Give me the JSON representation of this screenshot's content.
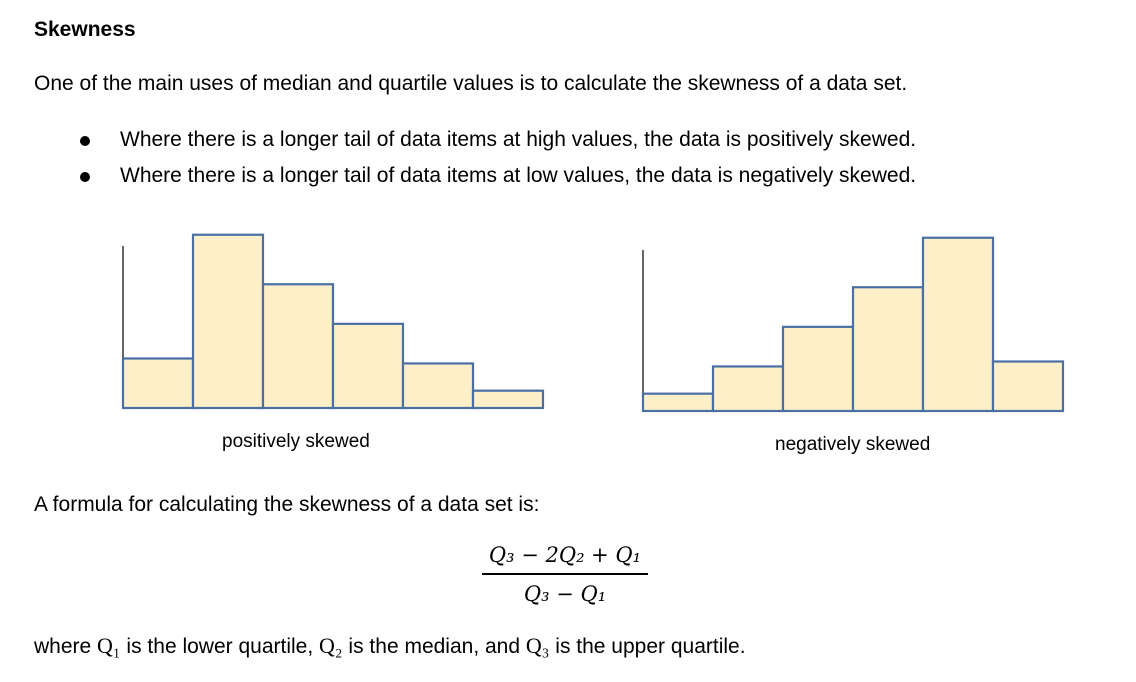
{
  "heading": "Skewness",
  "intro": "One of the main uses of median and quartile values is to calculate the skewness of a data set.",
  "bullets": [
    "Where there is a longer tail of data items at high values, the data is positively skewed.",
    "Where there is a longer tail of data items at low values, the data is negatively skewed."
  ],
  "chart_data": [
    {
      "type": "bar",
      "values": [
        1,
        3.5,
        2.5,
        1.7,
        0.9,
        0.35
      ],
      "xlabel": "positively skewed",
      "colors": {
        "fill": "#fdf0c8",
        "stroke": "#4a6fa5",
        "axis": "#000000"
      }
    },
    {
      "type": "bar",
      "values": [
        0.35,
        0.9,
        1.7,
        2.5,
        3.5,
        1
      ],
      "xlabel": "negatively skewed",
      "colors": {
        "fill": "#fdf0c8",
        "stroke": "#4a6fa5",
        "axis": "#000000"
      }
    }
  ],
  "formula_intro": "A formula for calculating the skewness of a data set is:",
  "formula": {
    "numerator": "Q₃ − 2Q₂ + Q₁",
    "denominator": "Q₃ − Q₁"
  },
  "footer": {
    "prefix": "where ",
    "q1": "Q₁",
    "mid1": " is the lower quartile, ",
    "q2": "Q₂",
    "mid2": " is the median, and ",
    "q3": "Q₃",
    "suffix": " is the upper quartile."
  }
}
